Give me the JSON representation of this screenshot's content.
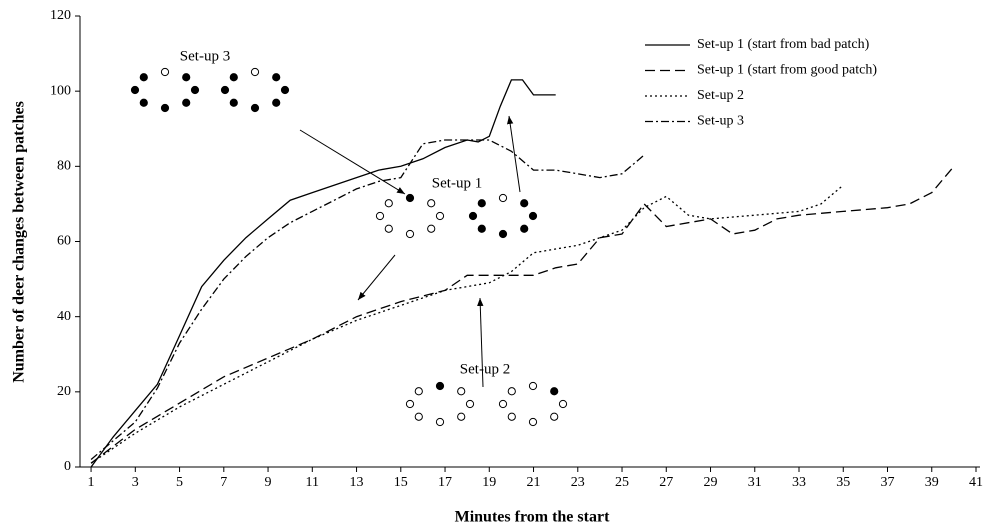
{
  "chart_data": {
    "type": "line",
    "x_label": "Minutes from the start",
    "y_label": "Number of deer changes between patches",
    "xlim": [
      0.5,
      41
    ],
    "xticks": [
      1,
      3,
      5,
      7,
      9,
      11,
      13,
      15,
      17,
      19,
      21,
      23,
      25,
      27,
      29,
      31,
      33,
      35,
      37,
      39,
      41
    ],
    "ylim": [
      0,
      120
    ],
    "yticks": [
      0,
      20,
      40,
      60,
      80,
      100,
      120
    ],
    "grid": false,
    "legend": "top-right",
    "annotations": [
      "Set-up 3",
      "Set-up 1",
      "Set-up 2"
    ],
    "series": [
      {
        "name": "Set-up 1 (start from bad patch)",
        "color": "#000000",
        "dash": "none",
        "x": [
          1,
          2,
          3,
          4,
          5,
          6,
          7,
          8,
          9,
          10,
          11,
          12,
          13,
          14,
          15,
          16,
          17,
          18,
          18.5,
          19,
          19.5,
          20,
          20.5,
          21,
          22
        ],
        "values": [
          0,
          8,
          15,
          22,
          35,
          48,
          55,
          61,
          66,
          71,
          73,
          75,
          77,
          79,
          80,
          82,
          85,
          87,
          86.5,
          88,
          96,
          103,
          103,
          99,
          99
        ]
      },
      {
        "name": "Set-up 1 (start from good patch)",
        "color": "#000000",
        "dash": "10,5",
        "x": [
          1,
          3,
          5,
          7,
          9,
          11,
          13,
          15,
          17,
          18,
          19,
          20,
          21,
          22,
          23,
          24,
          25,
          26,
          27,
          28,
          29,
          30,
          31,
          32,
          33,
          35,
          37,
          38,
          39,
          40
        ],
        "values": [
          1,
          10,
          17,
          24,
          29,
          34,
          40,
          44,
          47,
          51,
          51,
          51,
          51,
          53,
          54,
          61,
          62,
          70,
          64,
          65,
          66,
          62,
          63,
          66,
          67,
          68,
          69,
          70,
          73,
          80
        ]
      },
      {
        "name": "Set-up 2",
        "color": "#000000",
        "dash": "2,3",
        "x": [
          1,
          3,
          5,
          7,
          9,
          11,
          13,
          15,
          17,
          19,
          20,
          21,
          22,
          23,
          24,
          25,
          26,
          27,
          28,
          29,
          31,
          33,
          34,
          35
        ],
        "values": [
          1,
          9,
          16,
          22,
          28,
          34,
          39,
          43,
          47,
          49,
          52,
          57,
          58,
          59,
          61,
          63,
          69,
          72,
          67,
          66,
          67,
          68,
          70,
          75
        ]
      },
      {
        "name": "Set-up 3",
        "color": "#000000",
        "dash": "8,3,2,3",
        "x": [
          1,
          3,
          4,
          5,
          6,
          7,
          8,
          9,
          10,
          11,
          12,
          13,
          14,
          15,
          16,
          17,
          18,
          19,
          20,
          21,
          22,
          23,
          24,
          25,
          26
        ],
        "values": [
          2,
          12,
          21,
          33,
          42,
          50,
          56,
          61,
          65,
          68,
          71,
          74,
          76,
          77,
          86,
          87,
          87,
          87,
          84,
          79,
          79,
          78,
          77,
          78,
          83
        ]
      }
    ]
  }
}
